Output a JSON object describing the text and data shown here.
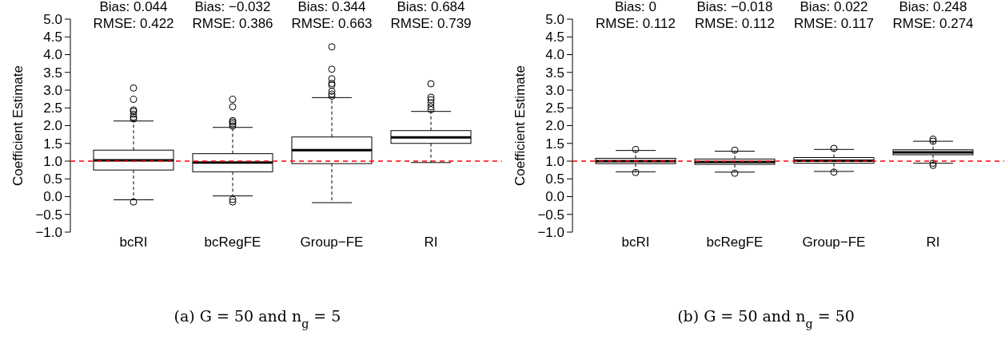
{
  "chart_data": [
    {
      "type": "box",
      "title": "(a) G = 50 and n$_{g}$ = 5",
      "ylabel": "Coefficient Estimate",
      "categories": [
        "bcRI",
        "bcRegFE",
        "Group−FE",
        "RI"
      ],
      "boxes": [
        {
          "low": -0.09,
          "q1": 0.75,
          "median": 1.02,
          "q3": 1.31,
          "high": 2.13,
          "outliers": [
            3.06,
            2.74,
            2.44,
            2.4,
            2.32,
            2.24,
            2.19,
            -0.15
          ]
        },
        {
          "low": 0.02,
          "q1": 0.7,
          "median": 0.96,
          "q3": 1.21,
          "high": 1.95,
          "outliers": [
            2.74,
            2.53,
            2.14,
            2.1,
            2.05,
            1.99,
            -0.08,
            -0.15
          ]
        },
        {
          "low": -0.17,
          "q1": 0.93,
          "median": 1.31,
          "q3": 1.68,
          "high": 2.79,
          "outliers": [
            4.22,
            3.59,
            3.32,
            3.19,
            3.14,
            2.97,
            2.89,
            2.83
          ]
        },
        {
          "low": 0.96,
          "q1": 1.5,
          "median": 1.67,
          "q3": 1.86,
          "high": 2.4,
          "outliers": [
            3.18,
            2.8,
            2.73,
            2.64,
            2.53,
            2.45
          ]
        }
      ],
      "ylim": [
        -1,
        5
      ],
      "yticks": [
        {
          "value": -1,
          "label": "−1.0"
        },
        {
          "value": -0.5,
          "label": "−0.5"
        },
        {
          "value": 0,
          "label": "0.0"
        },
        {
          "value": 0.5,
          "label": "0.5"
        },
        {
          "value": 1,
          "label": "1.0"
        },
        {
          "value": 1.5,
          "label": "1.5"
        },
        {
          "value": 2,
          "label": "2.0"
        },
        {
          "value": 2.5,
          "label": "2.5"
        },
        {
          "value": 3,
          "label": "3.0"
        },
        {
          "value": 3.5,
          "label": "3.5"
        },
        {
          "value": 4,
          "label": "4.0"
        },
        {
          "value": 4.5,
          "label": "4.5"
        },
        {
          "value": 5,
          "label": "5.0"
        }
      ],
      "ref_lines": [
        {
          "axis": "y",
          "value": 1,
          "color": "#ff0000",
          "line_style": "dashed"
        }
      ],
      "annotations": [
        "Bias: 0.044\nRMSE: 0.422",
        "Bias: −0.032\nRMSE: 0.386",
        "Bias: 0.344\nRMSE: 0.663",
        "Bias: 0.684\nRMSE: 0.739"
      ]
    },
    {
      "type": "box",
      "title": "(b) G = 50 and n$_{g}$ = 50",
      "ylabel": "Coefficient Estimate",
      "categories": [
        "bcRI",
        "bcRegFE",
        "Group−FE",
        "RI"
      ],
      "boxes": [
        {
          "low": 0.7,
          "q1": 0.93,
          "median": 1.0,
          "q3": 1.08,
          "high": 1.3,
          "outliers": [
            1.33,
            0.68
          ]
        },
        {
          "low": 0.69,
          "q1": 0.91,
          "median": 0.98,
          "q3": 1.06,
          "high": 1.28,
          "outliers": [
            1.31,
            0.66
          ]
        },
        {
          "low": 0.71,
          "q1": 0.94,
          "median": 1.01,
          "q3": 1.1,
          "high": 1.33,
          "outliers": [
            1.36,
            0.69
          ]
        },
        {
          "low": 0.94,
          "q1": 1.18,
          "median": 1.25,
          "q3": 1.32,
          "high": 1.56,
          "outliers": [
            1.62,
            1.56,
            0.94,
            0.88
          ]
        }
      ],
      "ylim": [
        -1,
        5
      ],
      "yticks": [
        {
          "value": -1,
          "label": "−1.0"
        },
        {
          "value": -0.5,
          "label": "−0.5"
        },
        {
          "value": 0,
          "label": "0.0"
        },
        {
          "value": 0.5,
          "label": "0.5"
        },
        {
          "value": 1,
          "label": "1.0"
        },
        {
          "value": 1.5,
          "label": "1.5"
        },
        {
          "value": 2,
          "label": "2.0"
        },
        {
          "value": 2.5,
          "label": "2.5"
        },
        {
          "value": 3,
          "label": "3.0"
        },
        {
          "value": 3.5,
          "label": "3.5"
        },
        {
          "value": 4,
          "label": "4.0"
        },
        {
          "value": 4.5,
          "label": "4.5"
        },
        {
          "value": 5,
          "label": "5.0"
        }
      ],
      "ref_lines": [
        {
          "axis": "y",
          "value": 1,
          "color": "#ff0000",
          "line_style": "dashed"
        }
      ],
      "annotations": [
        "Bias: 0\nRMSE: 0.112",
        "Bias: −0.018\nRMSE: 0.112",
        "Bias: 0.022\nRMSE: 0.117",
        "Bias: 0.248\nRMSE: 0.274"
      ]
    }
  ]
}
